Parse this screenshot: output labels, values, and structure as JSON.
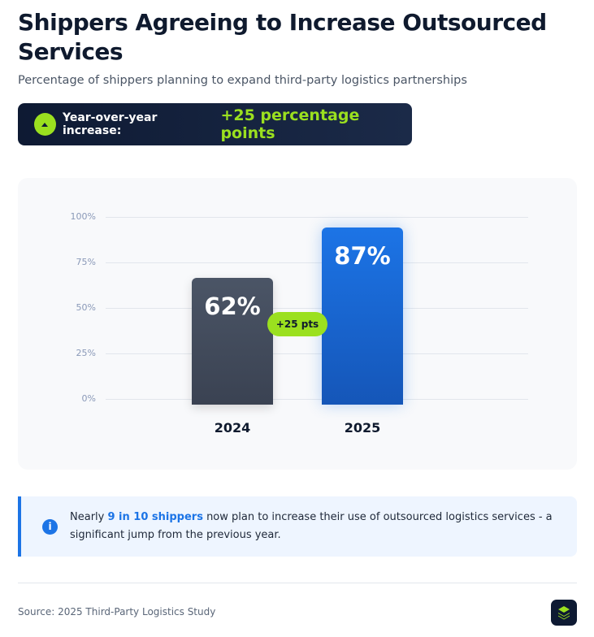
{
  "title": "Shippers Agreeing to Increase Outsourced Services",
  "subtitle": "Percentage of shippers planning to expand third-party logistics partnerships",
  "banner": {
    "label": "Year-over-year increase:",
    "value": "+25 percentage points",
    "icon": "arrow-up-icon"
  },
  "chart_data": {
    "type": "bar",
    "categories": [
      "2024",
      "2025"
    ],
    "values": [
      62,
      87
    ],
    "data_labels": [
      "62%",
      "87%"
    ],
    "ylim": [
      0,
      100
    ],
    "yticks": [
      "100%",
      "75%",
      "50%",
      "25%",
      "0%"
    ],
    "ytick_values": [
      100,
      75,
      50,
      25,
      0
    ],
    "grid": true,
    "colors": [
      "#3f4757",
      "#1a68d6"
    ],
    "annotation": "+25 pts"
  },
  "note": {
    "pre": "Nearly ",
    "highlight": "9 in 10 shippers",
    "post": " now plan to increase their use of outsourced logistics services - a significant jump from the previous year.",
    "icon": "info-icon"
  },
  "source": "Source: 2025 Third-Party Logistics Study",
  "colors": {
    "accent": "#9be01f",
    "primary": "#1c74e6",
    "dark": "#0e1a33"
  }
}
